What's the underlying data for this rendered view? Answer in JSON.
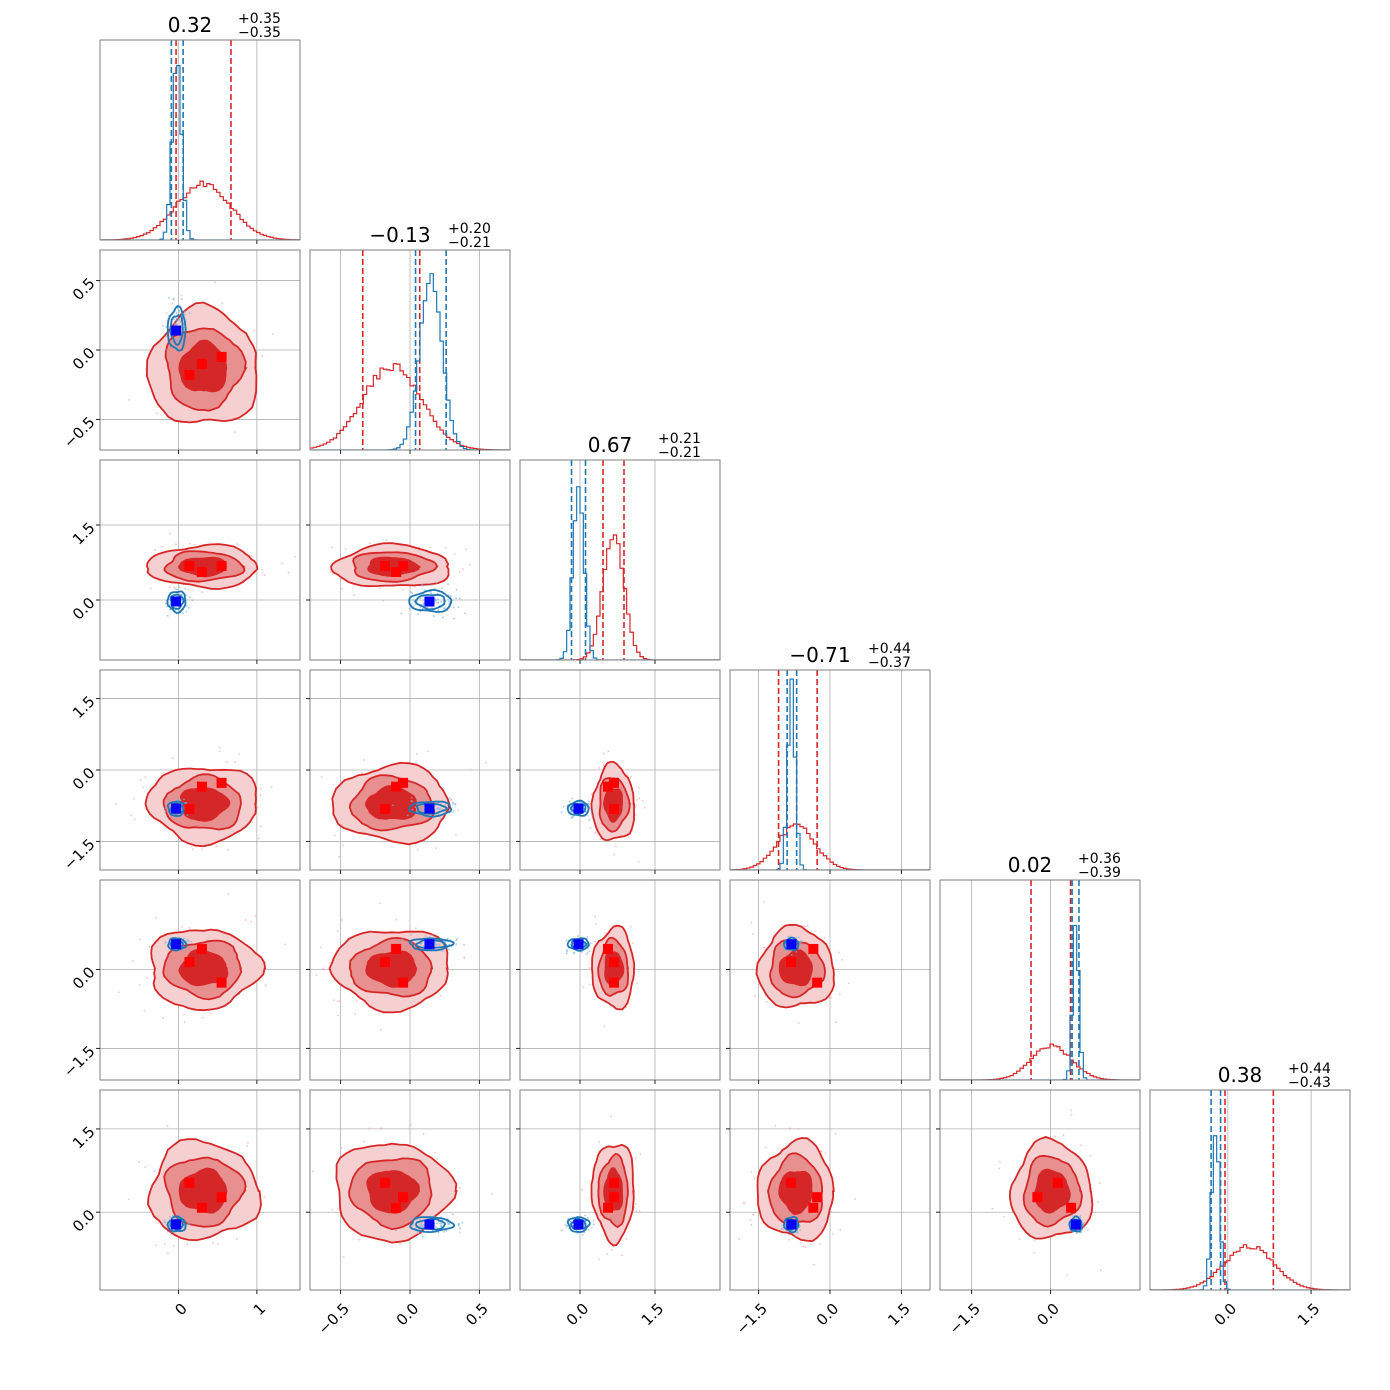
{
  "colors": {
    "red_line": "#d62728",
    "red_fill_dark": "#d62728",
    "red_fill_mid": "#e88f90",
    "red_fill_light": "#f6cfd0",
    "blue_line": "#1f77b4",
    "truth_blue": "#0000ff",
    "truth_red": "#ff0000",
    "grid": "#b0b0b0"
  },
  "chart_data": {
    "type": "corner",
    "n_params": 6,
    "ranges": [
      [
        -1.0,
        1.55
      ],
      [
        -0.72,
        0.72
      ],
      [
        -1.2,
        2.8
      ],
      [
        -2.1,
        2.1
      ],
      [
        -2.1,
        1.7
      ],
      [
        -1.4,
        2.2
      ]
    ],
    "ticks": [
      [
        "0",
        "1"
      ],
      [
        "−0.5",
        "0.0",
        "0.5"
      ],
      [
        "0.0",
        "1.5"
      ],
      [
        "−1.5",
        "0.0",
        "1.5"
      ],
      [
        "−1.5",
        "0.0"
      ],
      [
        "0.0",
        "1.5"
      ]
    ],
    "tick_values": [
      [
        0,
        1
      ],
      [
        -0.5,
        0.0,
        0.5
      ],
      [
        0.0,
        1.5
      ],
      [
        -1.5,
        0.0,
        1.5
      ],
      [
        -1.5,
        0.0
      ],
      [
        0.0,
        1.5
      ]
    ],
    "titles": [
      {
        "median": "0.32",
        "plus": "+0.35",
        "minus": "−0.35"
      },
      {
        "median": "−0.13",
        "plus": "+0.20",
        "minus": "−0.21"
      },
      {
        "median": "0.67",
        "plus": "+0.21",
        "minus": "−0.21"
      },
      {
        "median": "−0.71",
        "plus": "+0.44",
        "minus": "−0.37"
      },
      {
        "median": "0.02",
        "plus": "+0.36",
        "minus": "−0.39"
      },
      {
        "median": "0.38",
        "plus": "+0.44",
        "minus": "−0.43"
      }
    ],
    "series": [
      {
        "color": "#d62728",
        "means": [
          0.32,
          -0.13,
          0.67,
          -0.71,
          0.02,
          0.38
        ],
        "sigmas": [
          0.35,
          0.21,
          0.21,
          0.4,
          0.38,
          0.44
        ],
        "quantiles": [
          [
            -0.03,
            0.67
          ],
          [
            -0.34,
            0.07
          ],
          [
            0.46,
            0.88
          ],
          [
            -1.08,
            -0.27
          ],
          [
            -0.37,
            0.38
          ],
          [
            -0.05,
            0.82
          ]
        ],
        "peak_frac": [
          0.28,
          0.42,
          0.63,
          0.22,
          0.17,
          0.22
        ]
      },
      {
        "color": "#1f77b4",
        "means": [
          -0.02,
          0.15,
          -0.03,
          -0.81,
          0.48,
          -0.22
        ],
        "sigmas": [
          0.06,
          0.08,
          0.11,
          0.08,
          0.06,
          0.07
        ],
        "quantiles": [
          [
            -0.09,
            0.06
          ],
          [
            0.04,
            0.26
          ],
          [
            -0.17,
            0.11
          ],
          [
            -0.9,
            -0.7
          ],
          [
            0.41,
            0.54
          ],
          [
            -0.3,
            -0.13
          ]
        ],
        "peak_frac": [
          0.92,
          0.86,
          0.86,
          0.92,
          0.78,
          0.82
        ]
      }
    ],
    "truths_blue": [
      -0.03,
      0.14,
      -0.03,
      -0.81,
      0.48,
      -0.22
    ],
    "truths_red": [
      [
        0.14,
        -0.18,
        0.68,
        -0.82,
        0.14,
        0.53
      ],
      [
        0.3,
        -0.1,
        0.56,
        -0.35,
        0.39,
        0.08
      ],
      [
        0.55,
        -0.05,
        0.68,
        -0.27,
        -0.25,
        0.27
      ]
    ]
  }
}
